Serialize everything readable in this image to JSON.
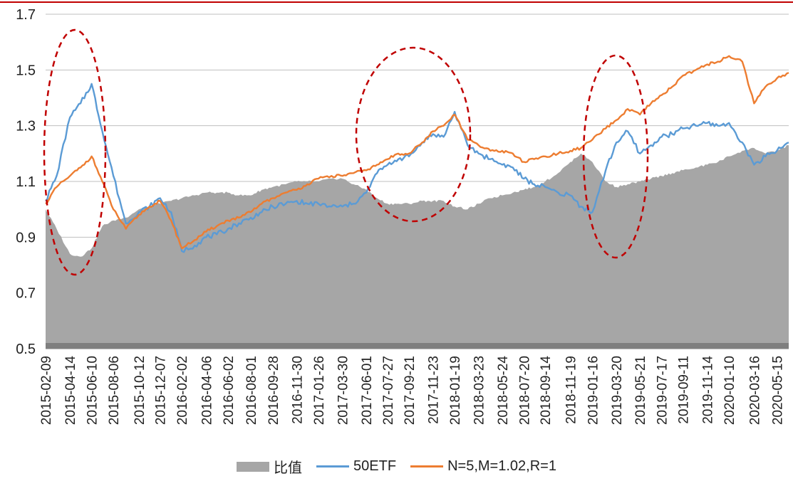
{
  "chart_data": {
    "type": "line",
    "title": "",
    "xlabel": "",
    "ylabel": "",
    "ylim": [
      0.5,
      1.7
    ],
    "yticks": [
      "0.5",
      "0.7",
      "0.9",
      "1.1",
      "1.3",
      "1.5",
      "1.7"
    ],
    "grid": "horizontal",
    "legend_position": "bottom",
    "x_tick_labels": [
      "2015-02-09",
      "2015-04-14",
      "2015-06-10",
      "2015-08-06",
      "2015-10-12",
      "2015-12-07",
      "2016-02-02",
      "2016-04-06",
      "2016-06-02",
      "2016-08-01",
      "2016-09-28",
      "2016-11-30",
      "2017-01-26",
      "2017-03-30",
      "2017-06-01",
      "2017-07-27",
      "2017-09-21",
      "2017-11-23",
      "2018-01-19",
      "2018-03-23",
      "2018-05-24",
      "2018-07-20",
      "2018-09-14",
      "2018-11-19",
      "2019-01-16",
      "2019-03-20",
      "2019-05-21",
      "2019-07-17",
      "2019-09-11",
      "2019-11-14",
      "2020-01-10",
      "2020-03-16",
      "2020-05-15"
    ],
    "x": [
      "2015-02-09",
      "2015-03-10",
      "2015-04-14",
      "2015-05-12",
      "2015-06-10",
      "2015-07-08",
      "2015-08-06",
      "2015-09-08",
      "2015-10-12",
      "2015-11-09",
      "2015-12-07",
      "2016-01-05",
      "2016-02-02",
      "2016-03-07",
      "2016-04-06",
      "2016-05-04",
      "2016-06-02",
      "2016-07-01",
      "2016-08-01",
      "2016-08-30",
      "2016-09-28",
      "2016-11-01",
      "2016-11-30",
      "2016-12-28",
      "2017-01-26",
      "2017-03-01",
      "2017-03-30",
      "2017-04-28",
      "2017-06-01",
      "2017-06-29",
      "2017-07-27",
      "2017-08-24",
      "2017-09-21",
      "2017-10-26",
      "2017-11-23",
      "2017-12-21",
      "2018-01-19",
      "2018-02-22",
      "2018-03-23",
      "2018-04-23",
      "2018-05-24",
      "2018-06-21",
      "2018-07-20",
      "2018-08-16",
      "2018-09-14",
      "2018-10-18",
      "2018-11-19",
      "2018-12-17",
      "2019-01-16",
      "2019-02-20",
      "2019-03-20",
      "2019-04-19",
      "2019-05-21",
      "2019-06-19",
      "2019-07-17",
      "2019-08-14",
      "2019-09-11",
      "2019-10-15",
      "2019-11-14",
      "2019-12-12",
      "2020-01-10",
      "2020-02-14",
      "2020-03-16",
      "2020-04-15",
      "2020-05-15",
      "2020-06-15"
    ],
    "series": [
      {
        "name": "比值",
        "type": "area",
        "color": "#a6a6a6",
        "values": [
          1.0,
          0.93,
          0.84,
          0.83,
          0.86,
          0.94,
          0.96,
          0.97,
          1.0,
          1.01,
          1.02,
          1.03,
          1.04,
          1.05,
          1.06,
          1.06,
          1.06,
          1.05,
          1.05,
          1.07,
          1.08,
          1.09,
          1.1,
          1.1,
          1.1,
          1.11,
          1.11,
          1.09,
          1.07,
          1.04,
          1.02,
          1.02,
          1.02,
          1.03,
          1.03,
          1.03,
          1.01,
          1.0,
          1.02,
          1.04,
          1.05,
          1.06,
          1.07,
          1.08,
          1.1,
          1.13,
          1.17,
          1.2,
          1.17,
          1.1,
          1.08,
          1.09,
          1.1,
          1.11,
          1.12,
          1.13,
          1.14,
          1.15,
          1.16,
          1.17,
          1.19,
          1.21,
          1.22,
          1.2,
          1.21,
          1.23
        ]
      },
      {
        "name": "50ETF",
        "type": "line",
        "color": "#5b9bd5",
        "values": [
          1.03,
          1.12,
          1.33,
          1.38,
          1.45,
          1.28,
          1.12,
          0.95,
          0.99,
          1.01,
          1.04,
          0.99,
          0.85,
          0.87,
          0.9,
          0.91,
          0.93,
          0.95,
          0.97,
          0.99,
          1.01,
          1.02,
          1.03,
          1.02,
          1.02,
          1.01,
          1.01,
          1.02,
          1.06,
          1.13,
          1.16,
          1.18,
          1.19,
          1.24,
          1.27,
          1.26,
          1.35,
          1.23,
          1.2,
          1.18,
          1.16,
          1.15,
          1.11,
          1.09,
          1.08,
          1.06,
          1.05,
          1.01,
          0.99,
          1.14,
          1.24,
          1.28,
          1.2,
          1.23,
          1.26,
          1.27,
          1.29,
          1.3,
          1.31,
          1.3,
          1.31,
          1.24,
          1.16,
          1.19,
          1.21,
          1.24
        ]
      },
      {
        "name": "N=5,M=1.02,R=1",
        "type": "line",
        "color": "#ed7d31",
        "values": [
          1.02,
          1.08,
          1.12,
          1.15,
          1.19,
          1.1,
          1.0,
          0.93,
          0.98,
          1.01,
          1.03,
          0.96,
          0.86,
          0.89,
          0.92,
          0.94,
          0.96,
          0.97,
          0.99,
          1.02,
          1.04,
          1.06,
          1.07,
          1.09,
          1.11,
          1.12,
          1.12,
          1.13,
          1.14,
          1.16,
          1.18,
          1.2,
          1.2,
          1.24,
          1.28,
          1.3,
          1.34,
          1.25,
          1.23,
          1.21,
          1.21,
          1.2,
          1.17,
          1.18,
          1.19,
          1.2,
          1.21,
          1.22,
          1.25,
          1.29,
          1.32,
          1.36,
          1.34,
          1.38,
          1.41,
          1.44,
          1.48,
          1.5,
          1.52,
          1.53,
          1.55,
          1.53,
          1.38,
          1.44,
          1.47,
          1.49
        ]
      }
    ]
  }
}
